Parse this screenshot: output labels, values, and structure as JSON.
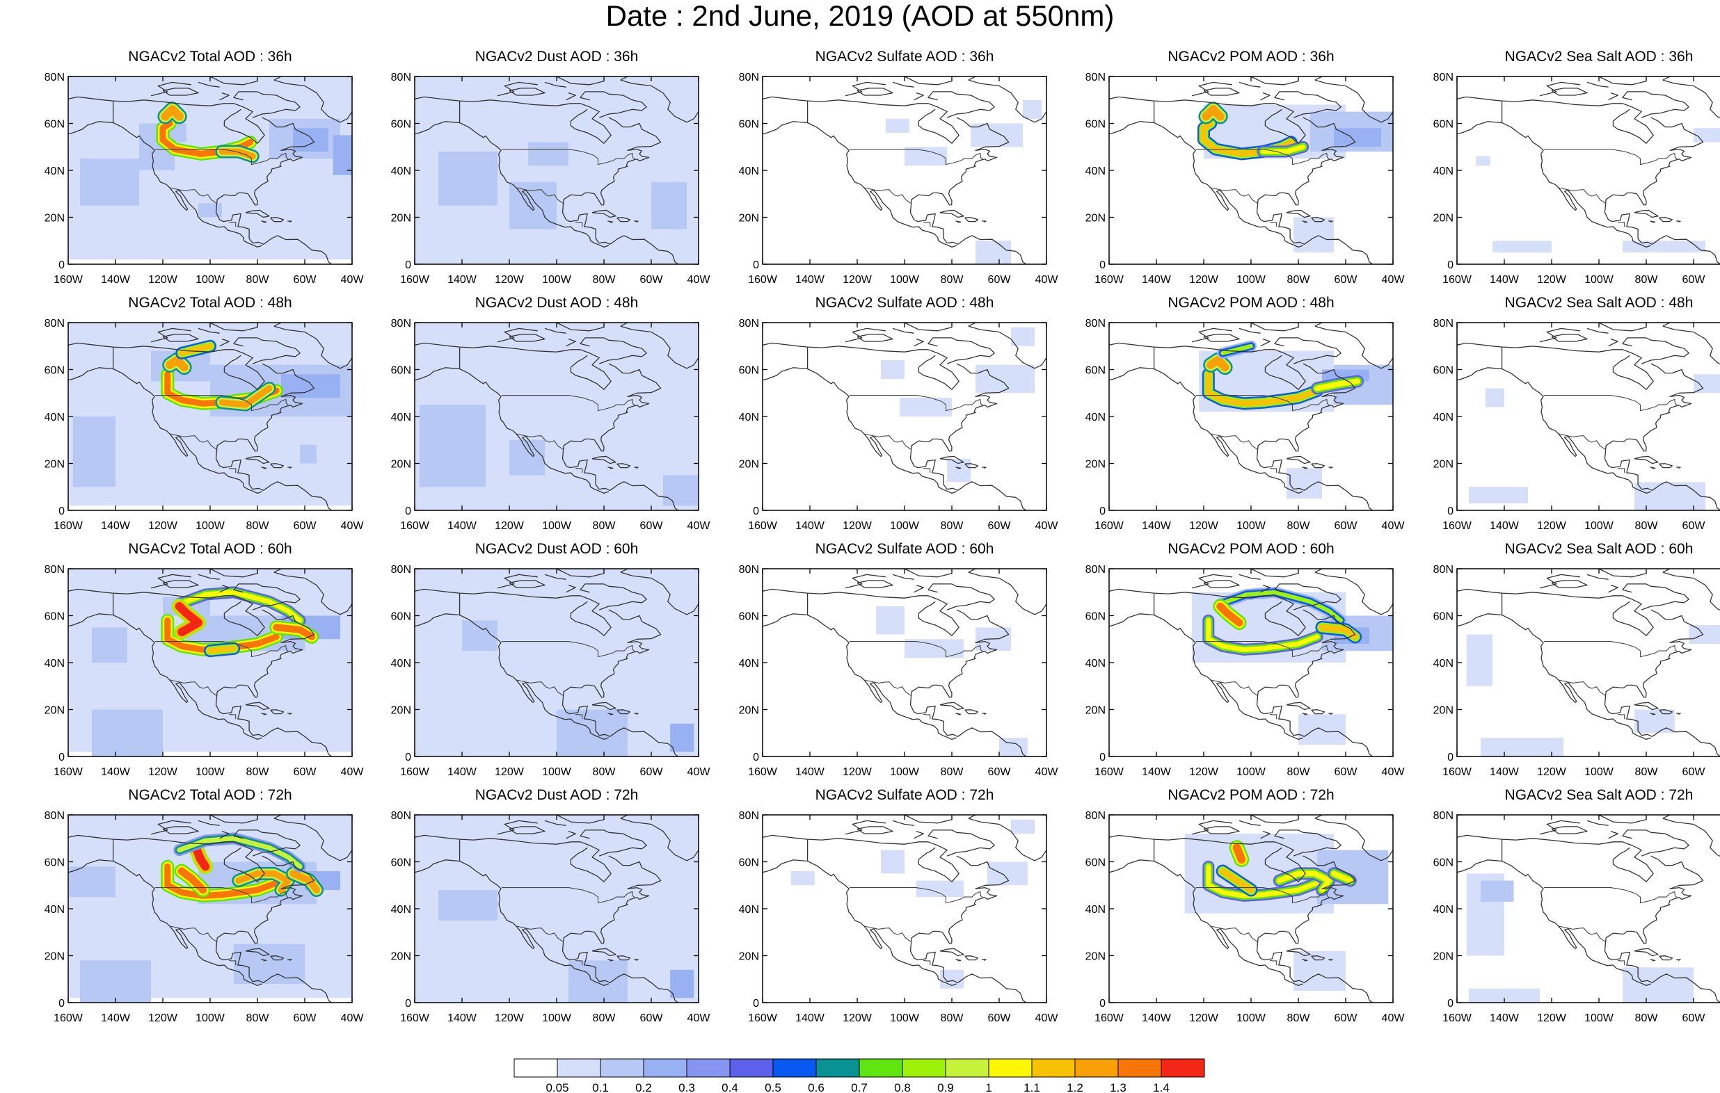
{
  "title": "Date : 2nd June, 2019 (AOD at 550nm)",
  "axes": {
    "lat_ticks": [
      "0",
      "20N",
      "40N",
      "60N",
      "80N"
    ],
    "lon_ticks": [
      "160W",
      "140W",
      "120W",
      "100W",
      "80W",
      "60W",
      "40W"
    ]
  },
  "rows": [
    "36h",
    "48h",
    "60h",
    "72h"
  ],
  "columns": [
    {
      "key": "total",
      "titles": [
        "NGACv2 Total AOD : 36h",
        "NGACv2 Total AOD : 48h",
        "NGACv2 Total AOD : 60h",
        "NGACv2 Total AOD : 72h"
      ]
    },
    {
      "key": "dust",
      "titles": [
        "NGACv2 Dust AOD : 36h",
        "NGACv2 Dust AOD : 48h",
        "NGACv2 Dust AOD : 60h",
        "NGACv2 Dust AOD : 72h"
      ]
    },
    {
      "key": "sulfate",
      "titles": [
        "NGACv2 Sulfate AOD : 36h",
        "NGACv2 Sulfate AOD : 48h",
        "NGACv2 Sulfate AOD : 60h",
        "NGACv2 Sulfate AOD : 72h"
      ]
    },
    {
      "key": "pom",
      "titles": [
        "NGACv2 POM AOD : 36h",
        "NGACv2 POM AOD : 48h",
        "NGACv2 POM AOD : 60h",
        "NGACv2 POM AOD : 72h"
      ]
    },
    {
      "key": "seasalt",
      "titles": [
        "NGACv2 Sea Salt AOD : 36h",
        "NGACv2 Sea Salt AOD : 48h",
        "NGACv2 Sea Salt AOD : 60h",
        "NGACv2 Sea Salt  AOD : 72h"
      ]
    }
  ],
  "colorbar": {
    "labels": [
      "0.05",
      "0.1",
      "0.2",
      "0.3",
      "0.4",
      "0.5",
      "0.6",
      "0.7",
      "0.8",
      "0.9",
      "1",
      "1.1",
      "1.2",
      "1.3",
      "1.4"
    ],
    "colors": [
      "#ffffff",
      "#d5dffa",
      "#b7c8f5",
      "#97b1f3",
      "#8595f0",
      "#5c60ea",
      "#0859ef",
      "#0a9191",
      "#5fe610",
      "#9ef20a",
      "#c7f23c",
      "#fbf707",
      "#f9c106",
      "#f99f07",
      "#f87607",
      "#f42716"
    ]
  }
}
